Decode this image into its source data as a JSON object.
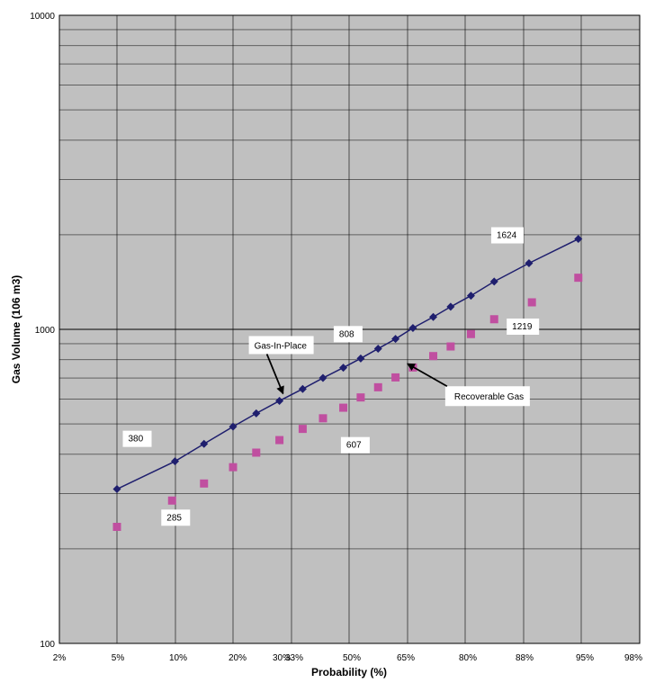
{
  "chart_data": {
    "type": "line",
    "title": "",
    "xlabel": "Probability (%)",
    "ylabel": "Gas Volume (106 m3)",
    "x_scale": "probability",
    "y_scale": "log",
    "ylim": [
      100,
      10000
    ],
    "grid": true,
    "x_ticks": [
      "2%",
      "5%",
      "10%",
      "20%",
      "30%",
      "33%",
      "50%",
      "65%",
      "80%",
      "88%",
      "95%",
      "98%"
    ],
    "y_ticks": [
      "100",
      "1000",
      "10000"
    ],
    "series": [
      {
        "kind": "line-markers",
        "color": "#1f1f6e",
        "marker": "diamond",
        "values": [
          {
            "x": 0,
            "y": 310
          },
          {
            "x": 1,
            "y": 380
          },
          {
            "x": 1.5,
            "y": 432
          },
          {
            "x": 2,
            "y": 490
          },
          {
            "x": 2.4,
            "y": 540
          },
          {
            "x": 2.8,
            "y": 592
          },
          {
            "x": 3.2,
            "y": 646
          },
          {
            "x": 3.55,
            "y": 700
          },
          {
            "x": 3.9,
            "y": 755
          },
          {
            "x": 4.2,
            "y": 808
          },
          {
            "x": 4.5,
            "y": 868
          },
          {
            "x": 4.8,
            "y": 932
          },
          {
            "x": 5.1,
            "y": 1010
          },
          {
            "x": 5.45,
            "y": 1095
          },
          {
            "x": 5.75,
            "y": 1180
          },
          {
            "x": 6.1,
            "y": 1280
          },
          {
            "x": 6.5,
            "y": 1420
          },
          {
            "x": 7.1,
            "y": 1624
          },
          {
            "x": 7.95,
            "y": 1940
          }
        ]
      },
      {
        "kind": "markers",
        "color": "#c04fa0",
        "marker": "square",
        "values": [
          {
            "x": 0,
            "y": 235
          },
          {
            "x": 0.95,
            "y": 285
          },
          {
            "x": 1.5,
            "y": 323
          },
          {
            "x": 2,
            "y": 364
          },
          {
            "x": 2.4,
            "y": 405
          },
          {
            "x": 2.8,
            "y": 444
          },
          {
            "x": 3.2,
            "y": 482
          },
          {
            "x": 3.55,
            "y": 521
          },
          {
            "x": 3.9,
            "y": 563
          },
          {
            "x": 4.2,
            "y": 607
          },
          {
            "x": 4.5,
            "y": 654
          },
          {
            "x": 4.8,
            "y": 703
          },
          {
            "x": 5.1,
            "y": 756
          },
          {
            "x": 5.45,
            "y": 822
          },
          {
            "x": 5.75,
            "y": 882
          },
          {
            "x": 6.1,
            "y": 966
          },
          {
            "x": 6.5,
            "y": 1077
          },
          {
            "x": 7.15,
            "y": 1219
          },
          {
            "x": 7.95,
            "y": 1460
          }
        ]
      }
    ],
    "annotations": [
      {
        "text": "380",
        "kind": "value",
        "anchor": [
          1,
          380
        ]
      },
      {
        "text": "285",
        "kind": "value",
        "anchor": [
          0.95,
          285
        ]
      },
      {
        "text": "808",
        "kind": "value",
        "anchor": [
          4.2,
          808
        ]
      },
      {
        "text": "607",
        "kind": "value",
        "anchor": [
          4.2,
          607
        ]
      },
      {
        "text": "1624",
        "kind": "value",
        "anchor": [
          7.1,
          1624
        ]
      },
      {
        "text": "1219",
        "kind": "value",
        "anchor": [
          7.15,
          1219
        ]
      },
      {
        "text": "Gas-In-Place",
        "kind": "arrow",
        "anchor": [
          2.8,
          592
        ]
      },
      {
        "text": "Recoverable Gas",
        "kind": "arrow",
        "anchor": [
          5.75,
          690
        ]
      }
    ]
  }
}
